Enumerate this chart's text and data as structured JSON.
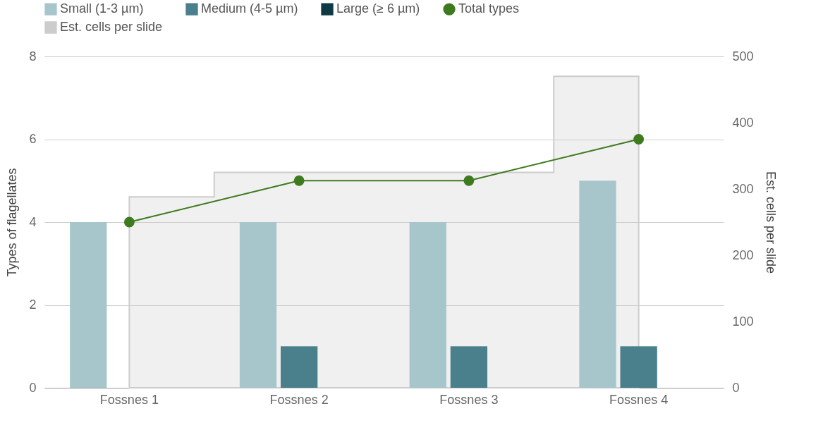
{
  "chart_data": {
    "type": "bar",
    "categories": [
      "Fossnes 1",
      "Fossnes 2",
      "Fossnes 3",
      "Fossnes 4"
    ],
    "series": [
      {
        "name": "Small (1-3 µm)",
        "color": "#a7c6cc",
        "values": [
          4,
          4,
          4,
          5
        ]
      },
      {
        "name": "Medium (4-5 µm)",
        "color": "#4a7f8c",
        "values": [
          0,
          1,
          1,
          1
        ]
      },
      {
        "name": "Large (≥ 6 µm)",
        "color": "#0e3a44",
        "values": [
          0,
          0,
          0,
          0
        ]
      },
      {
        "name": "Total types",
        "type": "line",
        "color": "#3e7b1e",
        "marker": "circle",
        "line_style": "solid",
        "values": [
          4,
          5,
          5,
          6
        ]
      },
      {
        "name": "Est. cells per slide",
        "type": "area",
        "axis": "y2",
        "color": "#cccccc",
        "values": [
          288,
          325,
          325,
          470
        ]
      }
    ],
    "ylabel": "Types of flagellates",
    "y2label": "Est. cells per slide",
    "ylim": [
      0,
      8
    ],
    "yticks": [
      0,
      2,
      4,
      6,
      8
    ],
    "y2lim": [
      0,
      500
    ],
    "y2ticks": [
      0,
      100,
      200,
      300,
      400,
      500
    ],
    "grid": "y",
    "legend": "top"
  }
}
